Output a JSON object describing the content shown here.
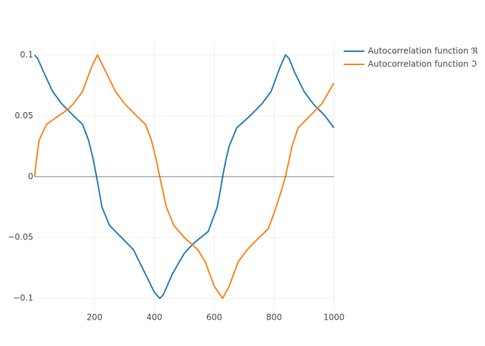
{
  "chart_data": {
    "type": "line",
    "xlim": [
      0,
      1000
    ],
    "xticks": [
      200,
      400,
      600,
      800,
      1000
    ],
    "ylim": [
      -0.109,
      0.111
    ],
    "yticks": [
      {
        "value": -0.1,
        "label": "−0.1"
      },
      {
        "value": -0.05,
        "label": "−0.05"
      },
      0,
      0.05,
      0.1
    ],
    "grid": true,
    "legend": "top-right",
    "series": [
      {
        "name": "Autocorrelation function ℜ",
        "color": "#1f77b4",
        "x": [
          0,
          10,
          30,
          60,
          90,
          130,
          160,
          180,
          195,
          207,
          225,
          250,
          290,
          330,
          370,
          400,
          418,
          430,
          460,
          500,
          530,
          580,
          610,
          620,
          628,
          640,
          650,
          675,
          720,
          760,
          790,
          820,
          838,
          850,
          870,
          900,
          930,
          970,
          1000
        ],
        "values": [
          0.1,
          0.097,
          0.086,
          0.07,
          0.06,
          0.05,
          0.043,
          0.03,
          0.015,
          0,
          -0.025,
          -0.04,
          -0.05,
          -0.06,
          -0.08,
          -0.095,
          -0.1,
          -0.097,
          -0.08,
          -0.063,
          -0.055,
          -0.045,
          -0.025,
          -0.012,
          0,
          0.015,
          0.025,
          0.04,
          0.05,
          0.06,
          0.07,
          0.09,
          0.1,
          0.097,
          0.085,
          0.07,
          0.06,
          0.05,
          0.04
        ]
      },
      {
        "name": "Autocorrelation function ℑ",
        "color": "#ff7f0e",
        "x": [
          0,
          5,
          15,
          40,
          80,
          110,
          130,
          160,
          190,
          210,
          230,
          270,
          300,
          340,
          370,
          390,
          405,
          418,
          440,
          465,
          500,
          545,
          570,
          600,
          628,
          650,
          680,
          710,
          750,
          780,
          800,
          820,
          838,
          860,
          880,
          920,
          960,
          1000
        ],
        "values": [
          0,
          0.012,
          0.03,
          0.043,
          0.05,
          0.055,
          0.06,
          0.07,
          0.09,
          0.1,
          0.09,
          0.07,
          0.06,
          0.05,
          0.043,
          0.03,
          0.015,
          0,
          -0.025,
          -0.04,
          -0.05,
          -0.06,
          -0.07,
          -0.09,
          -0.1,
          -0.09,
          -0.07,
          -0.06,
          -0.05,
          -0.043,
          -0.03,
          -0.015,
          0,
          0.025,
          0.04,
          0.05,
          0.06,
          0.077
        ]
      }
    ]
  }
}
